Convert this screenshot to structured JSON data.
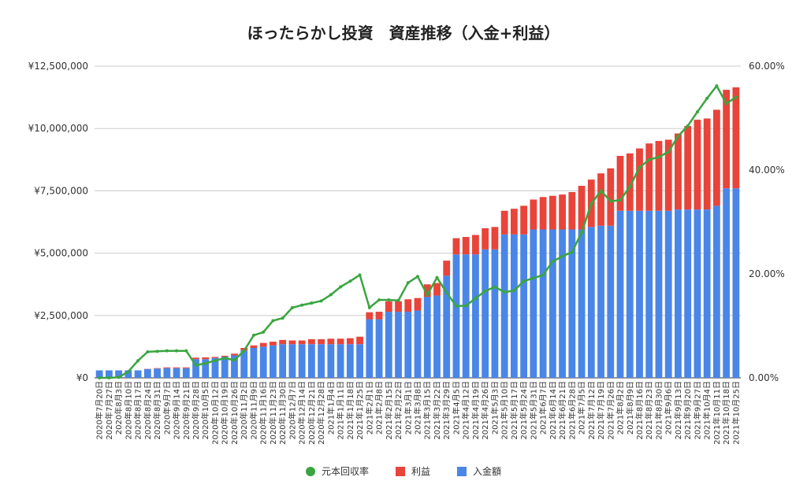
{
  "colors": {
    "recovery": "#3aa540",
    "profit": "#e8443a",
    "deposit": "#4a86e8",
    "grid": "#cccccc",
    "text": "#333333"
  },
  "chart_data": {
    "type": "bar",
    "stacked": true,
    "title": "ほったらかし投資　資産推移（入金+利益）",
    "categories": [
      "2020年7月20日",
      "2020年7月27日",
      "2020年8月3日",
      "2020年8月10日",
      "2020年8月17日",
      "2020年8月24日",
      "2020年8月31日",
      "2020年9月7日",
      "2020年9月14日",
      "2020年9月21日",
      "2020年9月28日",
      "2020年10月5日",
      "2020年10月12日",
      "2020年10月19日",
      "2020年10月26日",
      "2020年11月2日",
      "2020年11月9日",
      "2020年11月16日",
      "2020年11月23日",
      "2020年11月30日",
      "2020年12月7日",
      "2020年12月14日",
      "2020年12月21日",
      "2020年12月28日",
      "2021年1月4日",
      "2021年1月11日",
      "2021年1月18日",
      "2021年1月25日",
      "2021年2月1日",
      "2021年2月8日",
      "2021年2月15日",
      "2021年2月22日",
      "2021年3月1日",
      "2021年3月8日",
      "2021年3月15日",
      "2021年3月22日",
      "2021年3月29日",
      "2021年4月5日",
      "2021年4月12日",
      "2021年4月19日",
      "2021年4月26日",
      "2021年5月3日",
      "2021年5月10日",
      "2021年5月17日",
      "2021年5月24日",
      "2021年5月31日",
      "2021年6月7日",
      "2021年6月14日",
      "2021年6月21日",
      "2021年6月28日",
      "2021年7月5日",
      "2021年7月12日",
      "2021年7月19日",
      "2021年7月26日",
      "2021年8月2日",
      "2021年8月9日",
      "2021年8月16日",
      "2021年8月23日",
      "2021年8月30日",
      "2021年9月6日",
      "2021年9月13日",
      "2021年9月20日",
      "2021年9月27日",
      "2021年10月4日",
      "2021年10月11日",
      "2021年10月18日",
      "2021年10月25日"
    ],
    "series": [
      {
        "name": "入金額",
        "kind": "bar",
        "axis": "left",
        "values": [
          300000,
          300000,
          300000,
          300000,
          300000,
          350000,
          370000,
          390000,
          390000,
          390000,
          750000,
          750000,
          800000,
          850000,
          900000,
          1100000,
          1200000,
          1250000,
          1300000,
          1350000,
          1350000,
          1350000,
          1350000,
          1350000,
          1350000,
          1350000,
          1350000,
          1350000,
          2350000,
          2350000,
          2650000,
          2650000,
          2650000,
          2700000,
          3250000,
          3300000,
          4100000,
          4950000,
          4950000,
          4950000,
          5150000,
          5150000,
          5750000,
          5750000,
          5750000,
          5950000,
          5950000,
          5950000,
          5950000,
          5950000,
          5950000,
          6050000,
          6100000,
          6100000,
          6700000,
          6700000,
          6700000,
          6700000,
          6700000,
          6700000,
          6750000,
          6750000,
          6750000,
          6750000,
          6900000,
          7600000,
          7600000
        ]
      },
      {
        "name": "利益",
        "kind": "bar",
        "axis": "left",
        "values": [
          0,
          0,
          0,
          0,
          0,
          10000,
          20000,
          30000,
          30000,
          30000,
          60000,
          70000,
          40000,
          35000,
          70000,
          100000,
          100000,
          150000,
          150000,
          170000,
          150000,
          150000,
          200000,
          200000,
          220000,
          220000,
          240000,
          300000,
          280000,
          300000,
          420000,
          420000,
          500000,
          500000,
          500000,
          500000,
          600000,
          650000,
          700000,
          780000,
          850000,
          900000,
          950000,
          1030000,
          1150000,
          1200000,
          1300000,
          1350000,
          1400000,
          1500000,
          1750000,
          1900000,
          2100000,
          2300000,
          2200000,
          2300000,
          2500000,
          2700000,
          2800000,
          2850000,
          3050000,
          3350000,
          3600000,
          3650000,
          3850000,
          3950000,
          4050000
        ]
      },
      {
        "name": "元本回収率",
        "kind": "line",
        "axis": "right",
        "values": [
          0.0,
          0.0,
          0.1,
          1.2,
          3.3,
          5.0,
          5.1,
          5.2,
          5.2,
          5.2,
          2.4,
          2.8,
          3.3,
          3.8,
          3.4,
          5.2,
          8.2,
          8.8,
          11.0,
          11.5,
          13.5,
          14.0,
          14.4,
          14.8,
          16.0,
          17.5,
          18.6,
          19.8,
          13.5,
          15.0,
          15.0,
          14.9,
          18.3,
          19.5,
          16.0,
          19.3,
          16.4,
          13.8,
          13.9,
          15.3,
          16.7,
          17.5,
          16.5,
          16.8,
          18.6,
          19.2,
          19.8,
          22.4,
          23.4,
          24.2,
          28.0,
          33.5,
          36.0,
          34.0,
          34.2,
          36.8,
          40.5,
          42.0,
          42.5,
          43.5,
          46.5,
          48.5,
          51.2,
          53.8,
          56.2,
          52.8,
          54.0
        ]
      }
    ],
    "y_left": {
      "min": 0,
      "max": 12500000,
      "ticks": [
        "¥0",
        "¥2,500,000",
        "¥5,000,000",
        "¥7,500,000",
        "¥10,000,000",
        "¥12,500,000"
      ]
    },
    "y_right": {
      "min": 0,
      "max": 60,
      "ticks": [
        "0.00%",
        "20.00%",
        "40.00%",
        "60.00%"
      ]
    },
    "grid": true,
    "legend_position": "bottom"
  },
  "legend": [
    {
      "label": "元本回収率",
      "key": "recovery",
      "shape": "dot"
    },
    {
      "label": "利益",
      "key": "profit",
      "shape": "box"
    },
    {
      "label": "入金額",
      "key": "deposit",
      "shape": "box"
    }
  ]
}
